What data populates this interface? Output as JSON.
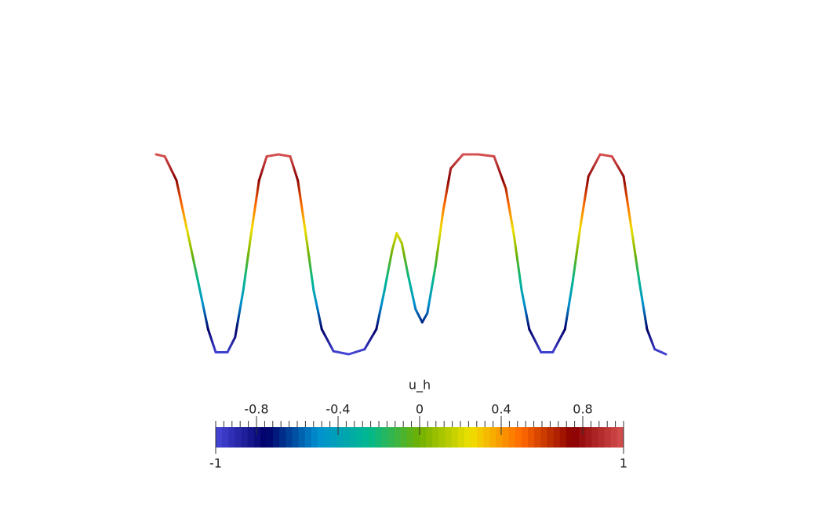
{
  "chart_data": {
    "type": "line",
    "colorbar_title": "u_h",
    "x": [
      0,
      0.017,
      0.04,
      0.063,
      0.086,
      0.102,
      0.117,
      0.14,
      0.155,
      0.171,
      0.186,
      0.202,
      0.217,
      0.24,
      0.263,
      0.278,
      0.294,
      0.309,
      0.325,
      0.348,
      0.378,
      0.409,
      0.432,
      0.448,
      0.463,
      0.472,
      0.482,
      0.494,
      0.509,
      0.522,
      0.532,
      0.548,
      0.563,
      0.578,
      0.602,
      0.632,
      0.663,
      0.686,
      0.702,
      0.717,
      0.732,
      0.755,
      0.778,
      0.802,
      0.817,
      0.832,
      0.848,
      0.871,
      0.894,
      0.917,
      0.932,
      0.948,
      0.963,
      0.978,
      1
    ],
    "values": [
      1,
      0.98,
      0.74,
      0.19,
      -0.36,
      -0.75,
      -0.98,
      -0.98,
      -0.83,
      -0.36,
      0.19,
      0.74,
      0.98,
      1,
      0.98,
      0.74,
      0.19,
      -0.36,
      -0.75,
      -0.97,
      -1,
      -0.95,
      -0.75,
      -0.36,
      0.04,
      0.21,
      0.11,
      -0.2,
      -0.55,
      -0.68,
      -0.59,
      -0.12,
      0.43,
      0.86,
      1,
      1,
      0.98,
      0.66,
      0.19,
      -0.36,
      -0.75,
      -0.98,
      -0.98,
      -0.75,
      -0.28,
      0.27,
      0.78,
      1,
      0.98,
      0.78,
      0.27,
      -0.28,
      -0.75,
      -0.95,
      -1
    ],
    "xlim": [
      0,
      1
    ],
    "ylim": [
      -1,
      1
    ],
    "clim": [
      -1,
      1
    ],
    "cticks": [
      -0.8,
      -0.4,
      0,
      0.4,
      0.8
    ],
    "colormap": [
      "#4646d8",
      "#00006a",
      "#0090d0",
      "#00b890",
      "#70b000",
      "#f0e000",
      "#ff6800",
      "#8a0000",
      "#d55050"
    ]
  }
}
